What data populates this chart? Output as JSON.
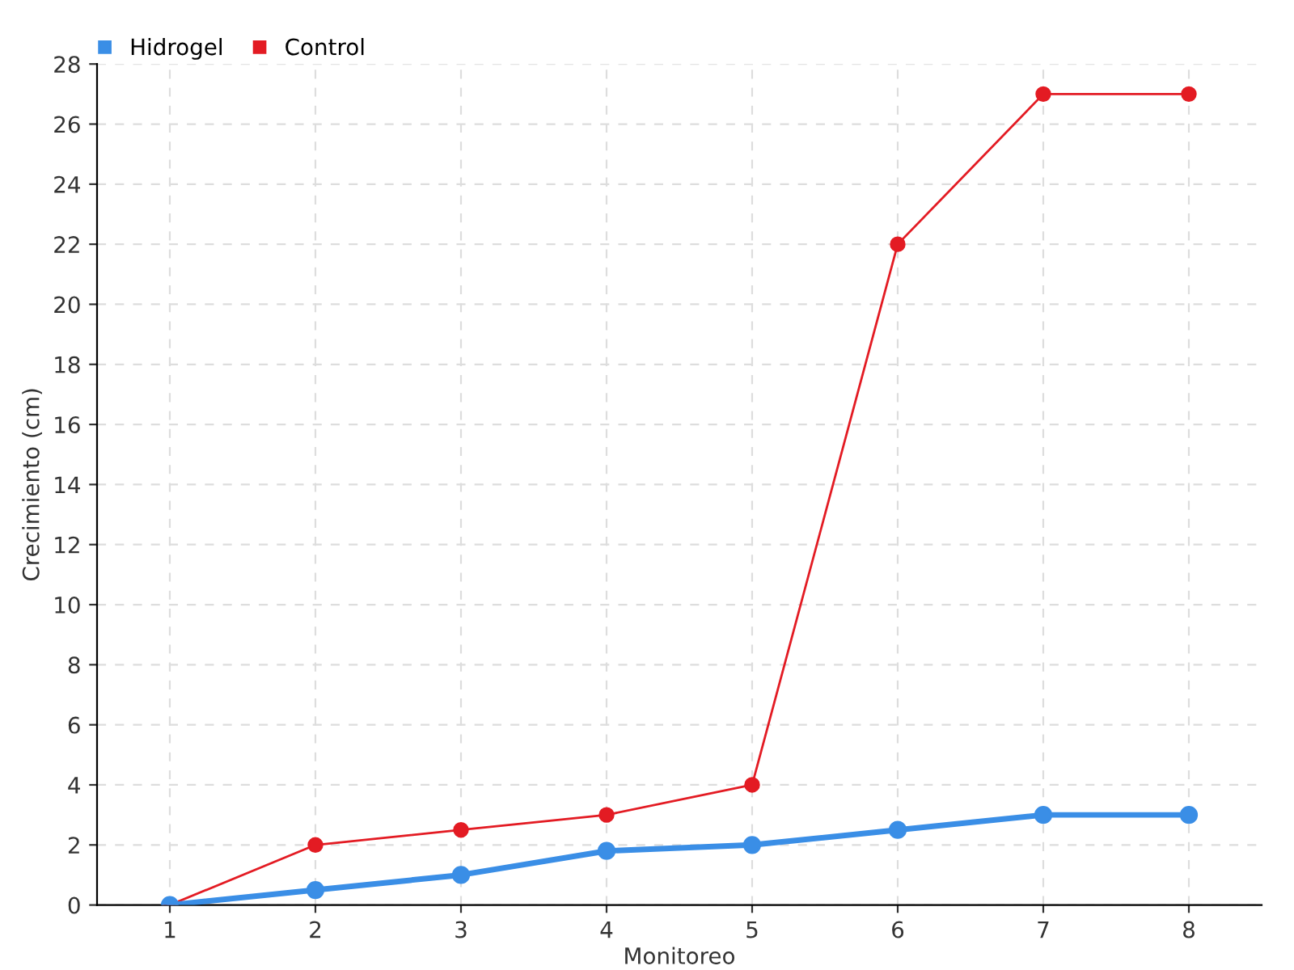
{
  "chart_data": {
    "type": "line",
    "xlabel": "Monitoreo",
    "ylabel": "Crecimiento (cm)",
    "x": [
      1,
      2,
      3,
      4,
      5,
      6,
      7,
      8
    ],
    "series": [
      {
        "name": "Hidrogel",
        "color": "#3a8ee6",
        "values": [
          0,
          0.5,
          1,
          1.8,
          2,
          2.5,
          3,
          3
        ]
      },
      {
        "name": "Control",
        "color": "#e31b23",
        "values": [
          0,
          2,
          2.5,
          3,
          4,
          22,
          27,
          27
        ]
      }
    ],
    "xlim": [
      0.5,
      8.5
    ],
    "xticks": [
      1,
      2,
      3,
      4,
      5,
      6,
      7,
      8
    ],
    "ylim": [
      0,
      28
    ],
    "yticks": [
      0,
      2,
      4,
      6,
      8,
      10,
      12,
      14,
      16,
      18,
      20,
      22,
      24,
      26,
      28
    ],
    "grid": true,
    "legend": "top left",
    "marker": "circle",
    "line_style": "solid"
  }
}
